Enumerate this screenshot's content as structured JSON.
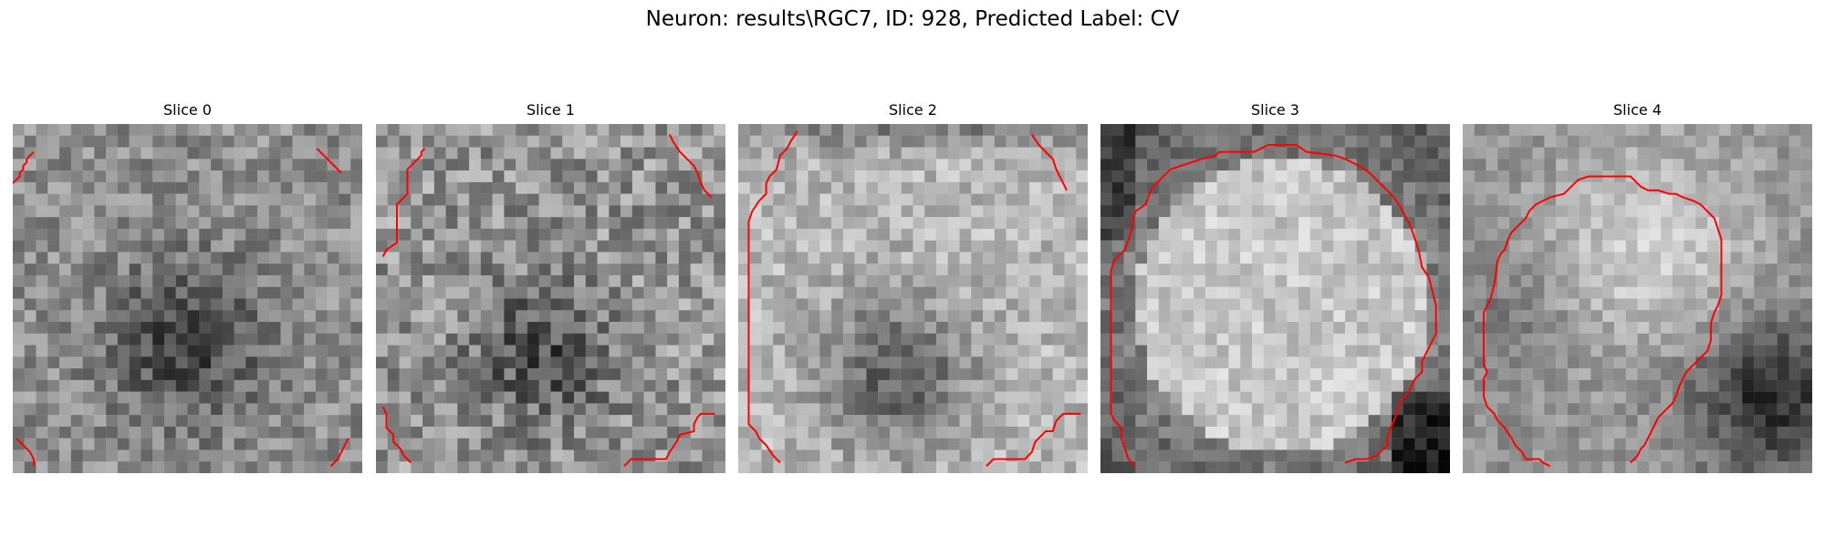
{
  "figure": {
    "title": "Neuron: results\\RGC7, ID: 928, Predicted Label: CV"
  },
  "colors": {
    "contour": "#ff0000"
  },
  "panels": [
    {
      "title": "Slice 0",
      "pattern": "dark-center",
      "contours": [
        [
          [
            0,
            17
          ],
          [
            2,
            15
          ],
          [
            2,
            14
          ],
          [
            3,
            13
          ],
          [
            3,
            12
          ],
          [
            4,
            11
          ],
          [
            4,
            10
          ],
          [
            5,
            9
          ],
          [
            6,
            8
          ]
        ],
        [
          [
            87,
            7
          ],
          [
            89,
            9
          ],
          [
            91,
            11
          ],
          [
            92,
            12
          ],
          [
            94,
            14
          ]
        ],
        [
          [
            1,
            90
          ],
          [
            3,
            92
          ],
          [
            5,
            94
          ],
          [
            6,
            96
          ],
          [
            6,
            98
          ]
        ],
        [
          [
            91,
            98
          ],
          [
            93,
            96
          ],
          [
            94,
            94
          ],
          [
            95,
            92
          ],
          [
            96,
            90
          ]
        ]
      ]
    },
    {
      "title": "Slice 1",
      "pattern": "dark-center-noisy",
      "contours": [
        [
          [
            2,
            38
          ],
          [
            3,
            36
          ],
          [
            6,
            34
          ],
          [
            6,
            23
          ],
          [
            7,
            22
          ],
          [
            9,
            20
          ],
          [
            9,
            13
          ],
          [
            11,
            11
          ],
          [
            13,
            9
          ],
          [
            13,
            8
          ],
          [
            14,
            7
          ]
        ],
        [
          [
            84,
            3
          ],
          [
            85,
            5
          ],
          [
            87,
            8
          ],
          [
            89,
            10
          ],
          [
            91,
            12
          ],
          [
            92,
            14
          ],
          [
            93,
            17
          ],
          [
            94,
            19
          ],
          [
            96,
            21
          ]
        ],
        [
          [
            2,
            81
          ],
          [
            3,
            83
          ],
          [
            3,
            87
          ],
          [
            5,
            89
          ],
          [
            5,
            91
          ],
          [
            7,
            93
          ],
          [
            8,
            95
          ],
          [
            10,
            97
          ]
        ],
        [
          [
            71,
            98
          ],
          [
            73,
            96
          ],
          [
            83,
            96
          ],
          [
            84,
            94
          ],
          [
            86,
            91
          ],
          [
            87,
            89
          ],
          [
            91,
            88
          ],
          [
            91,
            86
          ],
          [
            92,
            84
          ],
          [
            93,
            83
          ],
          [
            97,
            83
          ]
        ]
      ]
    },
    {
      "title": "Slice 2",
      "pattern": "bright-ring-dark-center",
      "contours": [
        [
          [
            17,
            2
          ],
          [
            15,
            5
          ],
          [
            14,
            7
          ],
          [
            12,
            9
          ],
          [
            11,
            13
          ],
          [
            9,
            15
          ],
          [
            8,
            17
          ],
          [
            8,
            20
          ],
          [
            6,
            22
          ],
          [
            4,
            25
          ],
          [
            3,
            28
          ],
          [
            3,
            86
          ],
          [
            5,
            88
          ],
          [
            6,
            90
          ],
          [
            8,
            92
          ],
          [
            10,
            95
          ],
          [
            12,
            97
          ]
        ],
        [
          [
            84,
            3
          ],
          [
            86,
            6
          ],
          [
            88,
            8
          ],
          [
            90,
            10
          ],
          [
            91,
            13
          ],
          [
            92,
            15
          ],
          [
            93,
            17
          ],
          [
            94,
            19
          ]
        ],
        [
          [
            71,
            98
          ],
          [
            73,
            96
          ],
          [
            82,
            96
          ],
          [
            84,
            94
          ],
          [
            85,
            91
          ],
          [
            87,
            89
          ],
          [
            88,
            88
          ],
          [
            90,
            88
          ],
          [
            91,
            85
          ],
          [
            92,
            84
          ],
          [
            93,
            83
          ],
          [
            98,
            83
          ]
        ]
      ]
    },
    {
      "title": "Slice 3",
      "pattern": "bright-disk",
      "contours": [
        [
          [
            10,
            98
          ],
          [
            8,
            96
          ],
          [
            7,
            93
          ],
          [
            6,
            90
          ],
          [
            6,
            87
          ],
          [
            4,
            85
          ],
          [
            3,
            83
          ],
          [
            3,
            42
          ],
          [
            4,
            39
          ],
          [
            6,
            37
          ],
          [
            7,
            36
          ],
          [
            8,
            33
          ],
          [
            9,
            30
          ],
          [
            9,
            28
          ],
          [
            10,
            25
          ],
          [
            13,
            23
          ],
          [
            14,
            20
          ],
          [
            15,
            18
          ],
          [
            18,
            15
          ],
          [
            20,
            13
          ],
          [
            23,
            12
          ],
          [
            26,
            11
          ],
          [
            29,
            10
          ],
          [
            33,
            9
          ],
          [
            34,
            8
          ],
          [
            44,
            8
          ],
          [
            46,
            7
          ],
          [
            48,
            6
          ],
          [
            56,
            6
          ],
          [
            59,
            8
          ],
          [
            67,
            9
          ],
          [
            70,
            10
          ],
          [
            74,
            12
          ],
          [
            77,
            14
          ],
          [
            79,
            16
          ],
          [
            81,
            18
          ],
          [
            84,
            21
          ],
          [
            86,
            24
          ],
          [
            87,
            26
          ],
          [
            89,
            30
          ],
          [
            90,
            33
          ],
          [
            91,
            36
          ],
          [
            92,
            41
          ],
          [
            94,
            44
          ],
          [
            95,
            48
          ],
          [
            96,
            52
          ],
          [
            96,
            60
          ],
          [
            95,
            62
          ],
          [
            94,
            64
          ],
          [
            93,
            66
          ],
          [
            92,
            68
          ],
          [
            92,
            71
          ],
          [
            90,
            73
          ],
          [
            89,
            75
          ],
          [
            88,
            77
          ],
          [
            86,
            79
          ],
          [
            85,
            82
          ],
          [
            84,
            85
          ],
          [
            83,
            87
          ],
          [
            82,
            90
          ],
          [
            82,
            92
          ],
          [
            81,
            93
          ],
          [
            79,
            95
          ],
          [
            76,
            96
          ],
          [
            73,
            96
          ],
          [
            70,
            97
          ]
        ]
      ]
    },
    {
      "title": "Slice 4",
      "pattern": "bright-upper-dark-lower-right",
      "contours": [
        [
          [
            25,
            98
          ],
          [
            23,
            97
          ],
          [
            22,
            96
          ],
          [
            18,
            96
          ],
          [
            17,
            94
          ],
          [
            15,
            92
          ],
          [
            14,
            90
          ],
          [
            12,
            87
          ],
          [
            10,
            85
          ],
          [
            9,
            83
          ],
          [
            7,
            81
          ],
          [
            6,
            78
          ],
          [
            6,
            73
          ],
          [
            7,
            71
          ],
          [
            6,
            69
          ],
          [
            6,
            54
          ],
          [
            7,
            52
          ],
          [
            8,
            50
          ],
          [
            9,
            46
          ],
          [
            10,
            39
          ],
          [
            11,
            37
          ],
          [
            12,
            36
          ],
          [
            13,
            33
          ],
          [
            14,
            31
          ],
          [
            16,
            29
          ],
          [
            18,
            27
          ],
          [
            19,
            25
          ],
          [
            21,
            23
          ],
          [
            23,
            22
          ],
          [
            25,
            21
          ],
          [
            29,
            20
          ],
          [
            31,
            18
          ],
          [
            33,
            16
          ],
          [
            36,
            15
          ],
          [
            38,
            15
          ],
          [
            40,
            15
          ],
          [
            44,
            15
          ],
          [
            48,
            15
          ],
          [
            49,
            16
          ],
          [
            51,
            18
          ],
          [
            53,
            19
          ],
          [
            56,
            19
          ],
          [
            59,
            20
          ],
          [
            61,
            20
          ],
          [
            63,
            21
          ],
          [
            66,
            22
          ],
          [
            68,
            23
          ],
          [
            70,
            25
          ],
          [
            72,
            27
          ],
          [
            73,
            30
          ],
          [
            74,
            33
          ],
          [
            74,
            49
          ],
          [
            73,
            52
          ],
          [
            72,
            54
          ],
          [
            71,
            57
          ],
          [
            71,
            62
          ],
          [
            70,
            65
          ],
          [
            68,
            67
          ],
          [
            66,
            69
          ],
          [
            64,
            71
          ],
          [
            63,
            73
          ],
          [
            62,
            75
          ],
          [
            61,
            78
          ],
          [
            60,
            80
          ],
          [
            58,
            82
          ],
          [
            56,
            84
          ],
          [
            55,
            86
          ],
          [
            54,
            88
          ],
          [
            53,
            90
          ],
          [
            52,
            92
          ],
          [
            51,
            93
          ],
          [
            50,
            95
          ],
          [
            48,
            97
          ]
        ]
      ]
    }
  ]
}
